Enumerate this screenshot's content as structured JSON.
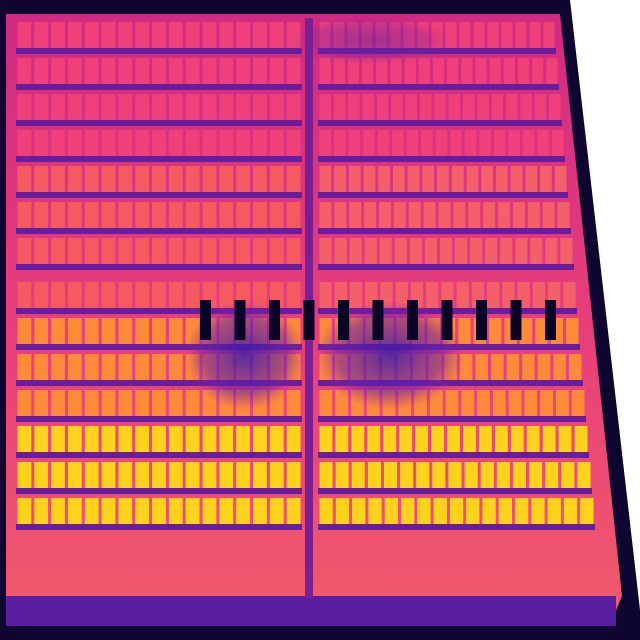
{
  "image": {
    "kind": "thermal-infrared-aerial",
    "subject": "solar-panel-array",
    "palette": {
      "background": "#ffffff",
      "cold": "#1a0a5c",
      "frame": "#3a1590",
      "gap": "#6a1d9a",
      "cool_cell": "#c8287e",
      "warm_cell": "#f0407a",
      "hot_cell": "#ff8a3a",
      "very_hot_cell": "#ffd21e",
      "shadow": "#3c1aa0",
      "slot": "#0c0424"
    }
  },
  "array": {
    "left_block": {
      "upper_rows": 7,
      "lower_rows": 7,
      "cells_per_row": 17
    },
    "right_block": {
      "upper_rows": 7,
      "lower_rows": 7,
      "cells_per_row": 17
    },
    "mounting_slots": 11
  }
}
